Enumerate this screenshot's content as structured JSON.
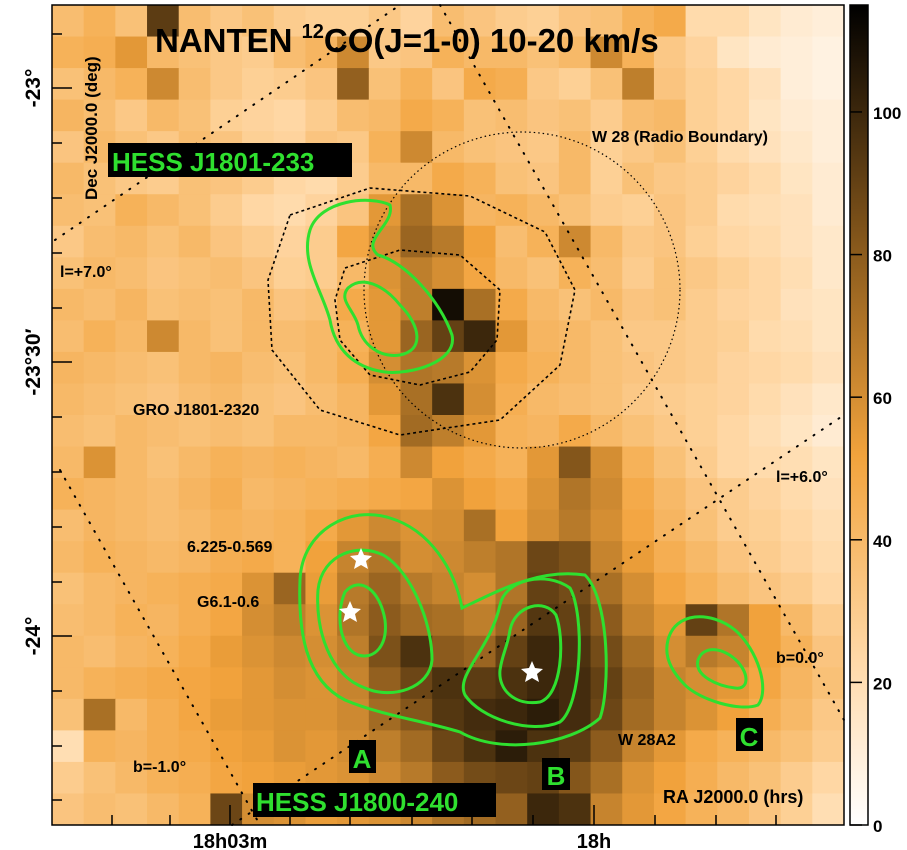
{
  "chart_data": {
    "type": "heatmap",
    "title": {
      "prefix": "NANTEN ",
      "superscript": "12",
      "suffix": "CO(J=1-0)  10-20 km/s"
    },
    "xlabel": "RA J2000.0 (hrs)",
    "ylabel": "Dec J2000.0 (deg)",
    "x_tick_labels": [
      "18h03m",
      "18h"
    ],
    "y_tick_labels": [
      "-23°",
      "-23°30′",
      "-24°"
    ],
    "colorbar": {
      "min": 0,
      "max": 115,
      "ticks": [
        0,
        20,
        40,
        60,
        80,
        100
      ],
      "colors": [
        "#ffffff",
        "#ffd9a8",
        "#f2a33c",
        "#8a5a1c",
        "#000000"
      ]
    },
    "grid_rows": 26,
    "grid_cols": 25,
    "intensity_grid": [
      [
        38,
        44,
        36,
        92,
        38,
        32,
        36,
        30,
        28,
        28,
        32,
        26,
        38,
        34,
        30,
        28,
        34,
        36,
        44,
        48,
        22,
        22,
        16,
        12,
        10
      ],
      [
        44,
        46,
        56,
        40,
        36,
        32,
        30,
        38,
        42,
        62,
        32,
        34,
        44,
        40,
        40,
        36,
        40,
        62,
        44,
        32,
        26,
        16,
        12,
        10,
        8
      ],
      [
        36,
        40,
        44,
        62,
        38,
        32,
        28,
        30,
        34,
        78,
        36,
        44,
        34,
        48,
        46,
        32,
        28,
        36,
        66,
        34,
        28,
        24,
        18,
        10,
        8
      ],
      [
        42,
        38,
        32,
        40,
        36,
        28,
        26,
        24,
        30,
        38,
        40,
        48,
        44,
        36,
        38,
        34,
        36,
        30,
        38,
        40,
        28,
        24,
        16,
        12,
        10
      ],
      [
        34,
        40,
        36,
        32,
        38,
        34,
        28,
        26,
        34,
        32,
        44,
        62,
        40,
        36,
        34,
        32,
        40,
        28,
        32,
        36,
        28,
        22,
        18,
        14,
        10
      ],
      [
        40,
        36,
        32,
        30,
        36,
        34,
        30,
        24,
        22,
        30,
        40,
        40,
        48,
        44,
        36,
        34,
        40,
        28,
        36,
        32,
        30,
        26,
        22,
        16,
        12
      ],
      [
        38,
        36,
        44,
        40,
        36,
        30,
        24,
        22,
        26,
        34,
        56,
        72,
        58,
        42,
        44,
        40,
        36,
        30,
        28,
        34,
        30,
        22,
        20,
        18,
        12
      ],
      [
        32,
        38,
        40,
        36,
        40,
        34,
        30,
        26,
        30,
        50,
        60,
        76,
        68,
        52,
        38,
        44,
        62,
        40,
        32,
        34,
        28,
        24,
        22,
        18,
        14
      ],
      [
        36,
        40,
        38,
        34,
        36,
        38,
        34,
        28,
        30,
        40,
        58,
        66,
        60,
        50,
        40,
        36,
        44,
        38,
        30,
        36,
        32,
        28,
        24,
        20,
        14
      ],
      [
        40,
        38,
        42,
        36,
        38,
        36,
        40,
        34,
        36,
        48,
        56,
        66,
        110,
        72,
        48,
        40,
        36,
        40,
        34,
        36,
        30,
        26,
        24,
        18,
        16
      ],
      [
        38,
        44,
        40,
        62,
        40,
        36,
        40,
        38,
        40,
        44,
        56,
        76,
        90,
        100,
        56,
        42,
        40,
        36,
        32,
        32,
        30,
        28,
        22,
        20,
        16
      ],
      [
        42,
        40,
        38,
        36,
        40,
        42,
        38,
        36,
        40,
        46,
        60,
        70,
        68,
        58,
        48,
        44,
        40,
        36,
        34,
        32,
        30,
        26,
        24,
        22,
        18
      ],
      [
        40,
        38,
        36,
        34,
        38,
        40,
        36,
        34,
        38,
        42,
        56,
        72,
        96,
        60,
        46,
        40,
        38,
        36,
        32,
        30,
        28,
        26,
        22,
        18,
        14
      ],
      [
        38,
        36,
        40,
        38,
        36,
        38,
        36,
        40,
        40,
        42,
        50,
        74,
        66,
        56,
        44,
        42,
        48,
        40,
        36,
        32,
        28,
        24,
        20,
        16,
        12
      ],
      [
        40,
        58,
        40,
        36,
        40,
        44,
        42,
        44,
        42,
        40,
        46,
        62,
        52,
        48,
        44,
        56,
        82,
        60,
        44,
        36,
        30,
        24,
        22,
        20,
        16
      ],
      [
        44,
        42,
        40,
        38,
        42,
        46,
        40,
        42,
        44,
        46,
        48,
        50,
        58,
        52,
        48,
        58,
        70,
        62,
        48,
        40,
        34,
        30,
        26,
        22,
        18
      ],
      [
        38,
        42,
        40,
        38,
        40,
        44,
        42,
        44,
        48,
        56,
        62,
        58,
        60,
        72,
        52,
        60,
        68,
        60,
        50,
        42,
        36,
        30,
        28,
        24,
        20
      ],
      [
        40,
        44,
        42,
        40,
        42,
        46,
        48,
        44,
        52,
        64,
        70,
        60,
        62,
        66,
        70,
        88,
        84,
        64,
        54,
        46,
        40,
        34,
        30,
        26,
        22
      ],
      [
        36,
        40,
        42,
        44,
        46,
        48,
        58,
        76,
        54,
        68,
        76,
        68,
        64,
        60,
        70,
        90,
        86,
        72,
        60,
        50,
        44,
        38,
        34,
        30,
        24
      ],
      [
        38,
        40,
        44,
        42,
        46,
        50,
        60,
        66,
        58,
        70,
        80,
        74,
        72,
        66,
        76,
        94,
        90,
        80,
        64,
        56,
        90,
        70,
        52,
        40,
        30
      ],
      [
        40,
        38,
        42,
        44,
        48,
        54,
        58,
        62,
        60,
        66,
        84,
        96,
        80,
        76,
        90,
        100,
        96,
        86,
        72,
        60,
        68,
        64,
        52,
        44,
        34
      ],
      [
        40,
        44,
        46,
        48,
        50,
        52,
        56,
        60,
        58,
        64,
        78,
        88,
        96,
        92,
        96,
        100,
        98,
        90,
        76,
        64,
        60,
        56,
        50,
        42,
        36
      ],
      [
        36,
        72,
        40,
        46,
        50,
        54,
        56,
        58,
        58,
        62,
        74,
        82,
        94,
        98,
        100,
        104,
        98,
        88,
        74,
        64,
        58,
        52,
        46,
        40,
        32
      ],
      [
        20,
        44,
        42,
        46,
        48,
        52,
        54,
        58,
        56,
        60,
        66,
        74,
        88,
        96,
        104,
        96,
        92,
        80,
        64,
        56,
        48,
        44,
        40,
        36,
        30
      ],
      [
        30,
        36,
        40,
        44,
        46,
        50,
        52,
        54,
        56,
        58,
        62,
        68,
        80,
        86,
        88,
        90,
        82,
        72,
        58,
        52,
        46,
        40,
        36,
        30,
        24
      ],
      [
        34,
        38,
        36,
        40,
        44,
        88,
        60,
        58,
        54,
        56,
        58,
        62,
        70,
        74,
        78,
        100,
        96,
        64,
        56,
        50,
        44,
        40,
        34,
        28,
        20
      ]
    ],
    "annotations": {
      "hess_north": "HESS J1801-233",
      "hess_south": "HESS J1800-240",
      "w28": "W 28 (Radio Boundary)",
      "gro": "GRO J1801-2320",
      "l7": "l=+7.0°",
      "l6": "l=+6.0°",
      "b0": "b=0.0°",
      "bm1": "b=-1.0°",
      "src1": "6.225-0.569",
      "src2": "G6.1-0.6",
      "w28a2": "W 28A2",
      "regA": "A",
      "regB": "B",
      "regC": "C"
    }
  }
}
